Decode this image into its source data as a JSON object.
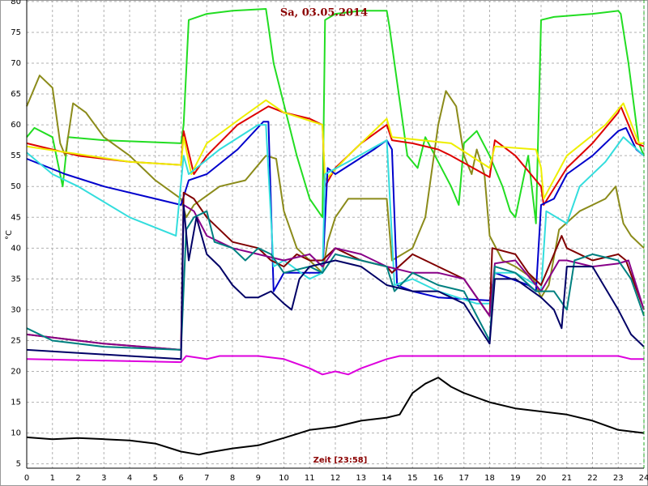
{
  "chart_data": {
    "type": "line",
    "title": "Sa, 03.05.2014",
    "x_label": "Zeit [23:58]",
    "y_label": "°C",
    "xlim": [
      0,
      24
    ],
    "ylim": [
      4.3,
      80.25
    ],
    "xticks": [
      0,
      1,
      2,
      3,
      4,
      5,
      6,
      7,
      8,
      9,
      10,
      11,
      12,
      13,
      14,
      15,
      16,
      17,
      18,
      19,
      20,
      21,
      22,
      23,
      24
    ],
    "yticks": [
      5,
      10,
      15,
      20,
      25,
      30,
      35,
      40,
      45,
      50,
      55,
      60,
      65,
      70,
      75,
      80
    ],
    "grid": true,
    "series": [
      {
        "color": "#22dd22",
        "x": [
          0,
          0.3,
          1,
          1.4,
          1.6,
          3,
          6,
          6.1,
          6.3,
          7,
          8,
          9.3,
          9.4,
          9.6,
          10.5,
          11,
          11.5,
          11.6,
          12,
          13,
          14,
          14.1,
          14.3,
          14.8,
          15.2,
          15.5,
          16,
          16.5,
          16.8,
          17,
          17.5,
          18,
          18.5,
          18.8,
          19,
          19.5,
          19.8,
          20,
          20.5,
          22,
          23,
          23.1,
          23.4,
          23.8,
          24
        ],
        "values": [
          58,
          59.5,
          58,
          50,
          58,
          57.5,
          57,
          60,
          77,
          78,
          78.5,
          78.8,
          76,
          70,
          55,
          48,
          45,
          77,
          78,
          78.5,
          78.5,
          76,
          70,
          55,
          53,
          58,
          54,
          50,
          47,
          57,
          59,
          55,
          50,
          46,
          45,
          55,
          44,
          77,
          77.5,
          78,
          78.5,
          78,
          70,
          57,
          55
        ]
      },
      {
        "color": "#8b8b1a",
        "x": [
          0,
          0.5,
          1,
          1.3,
          1.5,
          1.8,
          2.3,
          3,
          4,
          5,
          6,
          6.2,
          6.5,
          7.5,
          8.5,
          9.3,
          9.7,
          10,
          10.5,
          11,
          11.5,
          11.7,
          12,
          12.5,
          14,
          14.2,
          15,
          15.5,
          16,
          16.3,
          16.7,
          17,
          17.3,
          17.5,
          17.8,
          18,
          18.5,
          19,
          19.7,
          20,
          20.3,
          20.7,
          21.5,
          22.5,
          22.9,
          23.2,
          23.5,
          24
        ],
        "values": [
          63,
          68,
          66,
          57,
          55,
          63.5,
          62,
          58,
          55,
          51,
          48,
          45,
          47,
          50,
          51,
          55,
          54.5,
          46,
          40,
          38,
          36,
          41,
          45,
          48,
          48,
          38,
          40,
          45,
          60,
          65.5,
          63,
          55,
          52,
          56,
          52,
          42,
          38,
          37,
          35,
          32,
          34,
          43,
          46,
          48,
          50,
          44,
          42,
          40
        ]
      },
      {
        "color": "#dd0000",
        "x": [
          0,
          2,
          4,
          6,
          6.1,
          6.5,
          7,
          8.2,
          9.4,
          10,
          11,
          11.5,
          11.6,
          12,
          13,
          14,
          14.2,
          15,
          16,
          16.5,
          18,
          18.2,
          19,
          19.8,
          20,
          20.1,
          21,
          22,
          23,
          23.1,
          23.7,
          24
        ],
        "values": [
          57,
          55,
          54,
          53.5,
          59,
          52,
          55,
          60,
          63,
          62,
          61,
          60,
          50,
          53,
          57,
          60,
          57.5,
          57,
          56,
          55,
          51.5,
          57.5,
          55,
          51,
          50,
          47,
          53,
          57,
          62,
          63,
          57,
          56.5
        ]
      },
      {
        "color": "#eeee00",
        "x": [
          0,
          4,
          6,
          6.1,
          6.4,
          7,
          8.3,
          9.3,
          10,
          11.5,
          11.6,
          12.5,
          14,
          14.2,
          16.5,
          18,
          18.2,
          19.8,
          20,
          20.1,
          21,
          22.5,
          23.2,
          23.8,
          24
        ],
        "values": [
          56.5,
          54,
          53.5,
          58,
          52,
          57,
          61,
          64,
          62,
          60,
          51,
          55,
          61,
          58,
          57,
          53,
          56.5,
          56,
          53,
          48,
          55,
          60,
          63.5,
          57,
          57
        ]
      },
      {
        "color": "#0000cc",
        "x": [
          0,
          1.5,
          3,
          5,
          6,
          6.3,
          7,
          8.2,
          9.2,
          9.4,
          9.6,
          10,
          11.5,
          11.7,
          12,
          13.5,
          14,
          14.2,
          14.4,
          15,
          16,
          18,
          18.2,
          19.5,
          19.8,
          20,
          20.5,
          21,
          22,
          23,
          23.3,
          23.7,
          24
        ],
        "values": [
          54.5,
          52,
          50,
          48,
          47,
          51,
          52,
          56,
          60.5,
          60.5,
          33,
          36,
          36,
          53,
          52,
          56,
          57.5,
          56,
          34,
          33,
          32,
          31.5,
          36,
          34,
          33,
          47,
          48,
          52,
          55,
          59,
          59.5,
          56,
          55
        ]
      },
      {
        "color": "#33dddd",
        "x": [
          0,
          1,
          2,
          4,
          5.8,
          6.1,
          6.3,
          7.5,
          9,
          9.3,
          9.6,
          10,
          11,
          11.5,
          11.6,
          12.5,
          14,
          14.3,
          15,
          16,
          17.5,
          18,
          18.2,
          19,
          19.8,
          20,
          20.2,
          21,
          21.5,
          22.5,
          23.2,
          24
        ],
        "values": [
          55.5,
          52,
          50,
          45,
          42,
          55,
          52,
          56,
          60,
          60,
          37,
          38,
          35,
          36,
          52,
          54,
          57.5,
          34,
          35,
          33,
          31,
          31,
          36,
          36,
          34,
          33,
          46,
          44,
          50,
          54,
          58,
          55
        ]
      },
      {
        "color": "#800000",
        "x": [
          0,
          3,
          6,
          6.1,
          6.5,
          7,
          8,
          9,
          9.5,
          10,
          10.5,
          11,
          11.5,
          12,
          13,
          14,
          14.2,
          15,
          16,
          17,
          18,
          18.1,
          19,
          19.5,
          20,
          20.8,
          21,
          22,
          23,
          23.3,
          24
        ],
        "values": [
          26,
          24.5,
          23.5,
          49,
          48,
          45,
          41,
          40,
          38,
          37,
          39,
          38,
          38,
          40,
          38,
          37,
          36,
          39,
          37,
          35,
          29,
          40,
          39,
          36,
          34,
          42,
          40,
          38,
          39,
          38,
          30
        ]
      },
      {
        "color": "#880088",
        "x": [
          0,
          3,
          6,
          6.1,
          6.5,
          7,
          8,
          9,
          10,
          11,
          11.5,
          12,
          13,
          14,
          15,
          16,
          17,
          18,
          18.2,
          19,
          20,
          20.7,
          21,
          22,
          23,
          23.4,
          24
        ],
        "values": [
          26,
          24.5,
          23.5,
          47,
          46,
          42,
          40,
          39,
          38,
          39,
          37,
          40,
          39,
          37,
          36,
          36,
          35,
          29,
          37.5,
          38,
          33,
          38,
          38,
          37,
          37.5,
          38,
          30
        ]
      },
      {
        "color": "#008080",
        "x": [
          0,
          1,
          3,
          6,
          6.2,
          6.5,
          7,
          7.3,
          8,
          8.5,
          9,
          9.5,
          10,
          11,
          11.5,
          12,
          13,
          14,
          14.3,
          15,
          16,
          17,
          18,
          18.2,
          19,
          19.8,
          20.5,
          21,
          21.3,
          22,
          23,
          23.5,
          24
        ],
        "values": [
          27,
          25,
          24,
          23.5,
          43,
          45,
          46,
          41,
          40,
          38,
          40,
          39,
          36,
          37,
          36,
          39,
          38,
          37,
          33,
          36,
          34,
          33,
          25,
          37,
          36,
          33,
          33,
          30,
          38,
          39,
          38,
          35,
          29
        ]
      },
      {
        "color": "#000066",
        "x": [
          0,
          2,
          4,
          6,
          6.1,
          6.3,
          6.6,
          7,
          7.5,
          8,
          8.5,
          9,
          9.5,
          10,
          10.3,
          10.6,
          11,
          12,
          13,
          14,
          15,
          16,
          17,
          18,
          18.2,
          19,
          20,
          20.5,
          20.8,
          21,
          22,
          23,
          23.5,
          24
        ],
        "values": [
          23.5,
          23,
          22.5,
          22,
          47,
          38,
          45,
          39,
          37,
          34,
          32,
          32,
          33,
          31,
          30,
          35,
          37,
          38,
          37,
          34,
          33,
          33,
          31,
          24.5,
          35,
          35,
          32,
          30,
          27,
          37,
          37,
          30,
          26,
          24
        ]
      },
      {
        "color": "#dd00dd",
        "x": [
          0,
          6,
          6.2,
          7,
          7.5,
          9,
          10,
          11,
          11.5,
          12,
          12.5,
          13,
          14,
          14.5,
          23,
          23.5,
          24
        ],
        "values": [
          22,
          21.5,
          22.5,
          22,
          22.5,
          22.5,
          22,
          20.5,
          19.5,
          20,
          19.5,
          20.5,
          22,
          22.5,
          22.5,
          22,
          22
        ]
      },
      {
        "color": "#000000",
        "x": [
          0,
          1,
          2,
          3,
          4,
          5,
          6,
          6.7,
          7,
          8,
          9,
          10,
          11,
          12,
          13,
          14,
          14.5,
          15,
          15.5,
          16,
          16.5,
          17,
          18,
          19,
          20,
          21,
          22,
          23,
          24
        ],
        "values": [
          9.3,
          9,
          9.2,
          9,
          8.8,
          8.3,
          7,
          6.5,
          6.8,
          7.5,
          8,
          9.2,
          10.5,
          11,
          12,
          12.5,
          13,
          16.5,
          18,
          19,
          17.5,
          16.5,
          15,
          14,
          13.5,
          13,
          12,
          10.5,
          10
        ]
      }
    ]
  }
}
